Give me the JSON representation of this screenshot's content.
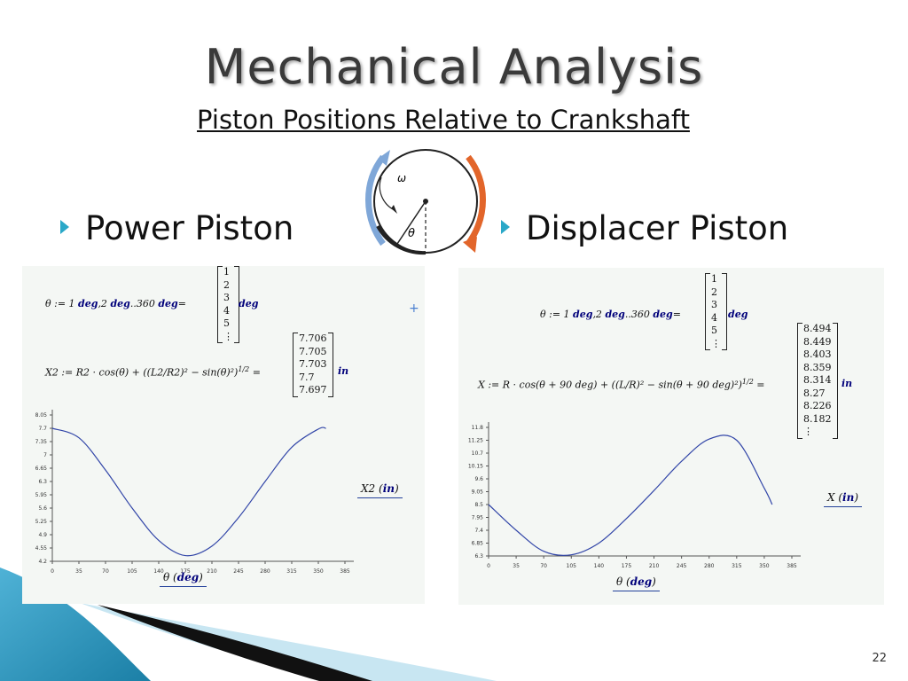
{
  "slide": {
    "title": "Mechanical Analysis",
    "subtitle": "Piston Positions Relative to Crankshaft",
    "page_number": "22",
    "bullets": [
      {
        "text": "Power Piston"
      },
      {
        "text": "Displacer Piston"
      }
    ],
    "diagram": {
      "omega": "ω",
      "theta": "θ"
    }
  },
  "colors": {
    "accent_blue": "#7fa7d8",
    "accent_orange": "#e2652a",
    "bullet": "#2aa8c8",
    "curve": "#3246a8"
  },
  "left_panel": {
    "theta_def": {
      "lhs": "θ := 1",
      "deg1": "deg",
      "mid": ",2",
      "deg2": "deg",
      "range": "..360",
      "deg3": "deg",
      "eq": "=",
      "unit": "deg"
    },
    "theta_values": [
      "1",
      "2",
      "3",
      "4",
      "5",
      "⋮"
    ],
    "x2_def": {
      "lhs": "X2 := R2 ·",
      "body": "cos(θ) + ((L2/R2)² − sin(θ)²)",
      "exp": "1/2",
      "eq": "=",
      "unit": "in"
    },
    "x2_values": [
      "7.706",
      "7.705",
      "7.703",
      "7.7",
      "7.697"
    ],
    "legend_y": "X2",
    "legend_y_unit": "in",
    "legend_x": "θ",
    "legend_x_unit": "deg"
  },
  "right_panel": {
    "theta_def": {
      "lhs": "θ := 1",
      "deg1": "deg",
      "mid": ",2",
      "deg2": "deg",
      "range": "..360",
      "deg3": "deg",
      "eq": "=",
      "unit": "deg"
    },
    "theta_values": [
      "1",
      "2",
      "3",
      "4",
      "5",
      "⋮"
    ],
    "x_def": {
      "lhs": "X := R ·",
      "body": "cos(θ + 90 deg) + ((L/R)² − sin(θ + 90 deg)²)",
      "exp": "1/2",
      "eq": "=",
      "unit": "in"
    },
    "x_values": [
      "8.494",
      "8.449",
      "8.403",
      "8.359",
      "8.314",
      "8.27",
      "8.226",
      "8.182",
      "⋮"
    ],
    "legend_y": "X",
    "legend_y_unit": "in",
    "legend_x": "θ",
    "legend_x_unit": "deg"
  },
  "chart_data": [
    {
      "type": "line",
      "series": [
        {
          "name": "X2",
          "x": [
            0,
            35,
            70,
            105,
            140,
            175,
            210,
            245,
            280,
            315,
            350,
            360
          ],
          "values": [
            7.7,
            7.45,
            6.6,
            5.6,
            4.75,
            4.35,
            4.6,
            5.35,
            6.3,
            7.2,
            7.68,
            7.7
          ]
        }
      ],
      "xticks": [
        "0",
        "35",
        "70",
        "105",
        "140",
        "175",
        "210",
        "245",
        "280",
        "315",
        "350",
        "385"
      ],
      "yticks": [
        "8.05",
        "7.7",
        "7.35",
        "7",
        "6.65",
        "6.3",
        "5.95",
        "5.6",
        "5.25",
        "4.9",
        "4.55",
        "4.2"
      ],
      "xlim": [
        0,
        385
      ],
      "ylim": [
        4.2,
        8.05
      ]
    },
    {
      "type": "line",
      "series": [
        {
          "name": "X",
          "x": [
            0,
            35,
            70,
            105,
            140,
            175,
            210,
            245,
            280,
            315,
            350,
            360
          ],
          "values": [
            8.5,
            7.4,
            6.5,
            6.35,
            6.85,
            7.9,
            9.1,
            10.35,
            11.3,
            11.25,
            9.2,
            8.5
          ]
        }
      ],
      "xticks": [
        "0",
        "35",
        "70",
        "105",
        "140",
        "175",
        "210",
        "245",
        "280",
        "315",
        "350",
        "385"
      ],
      "yticks": [
        "11.8",
        "11.25",
        "10.7",
        "10.15",
        "9.6",
        "9.05",
        "8.5",
        "7.95",
        "7.4",
        "6.85",
        "6.3"
      ],
      "xlim": [
        0,
        385
      ],
      "ylim": [
        6.3,
        11.8
      ]
    }
  ]
}
